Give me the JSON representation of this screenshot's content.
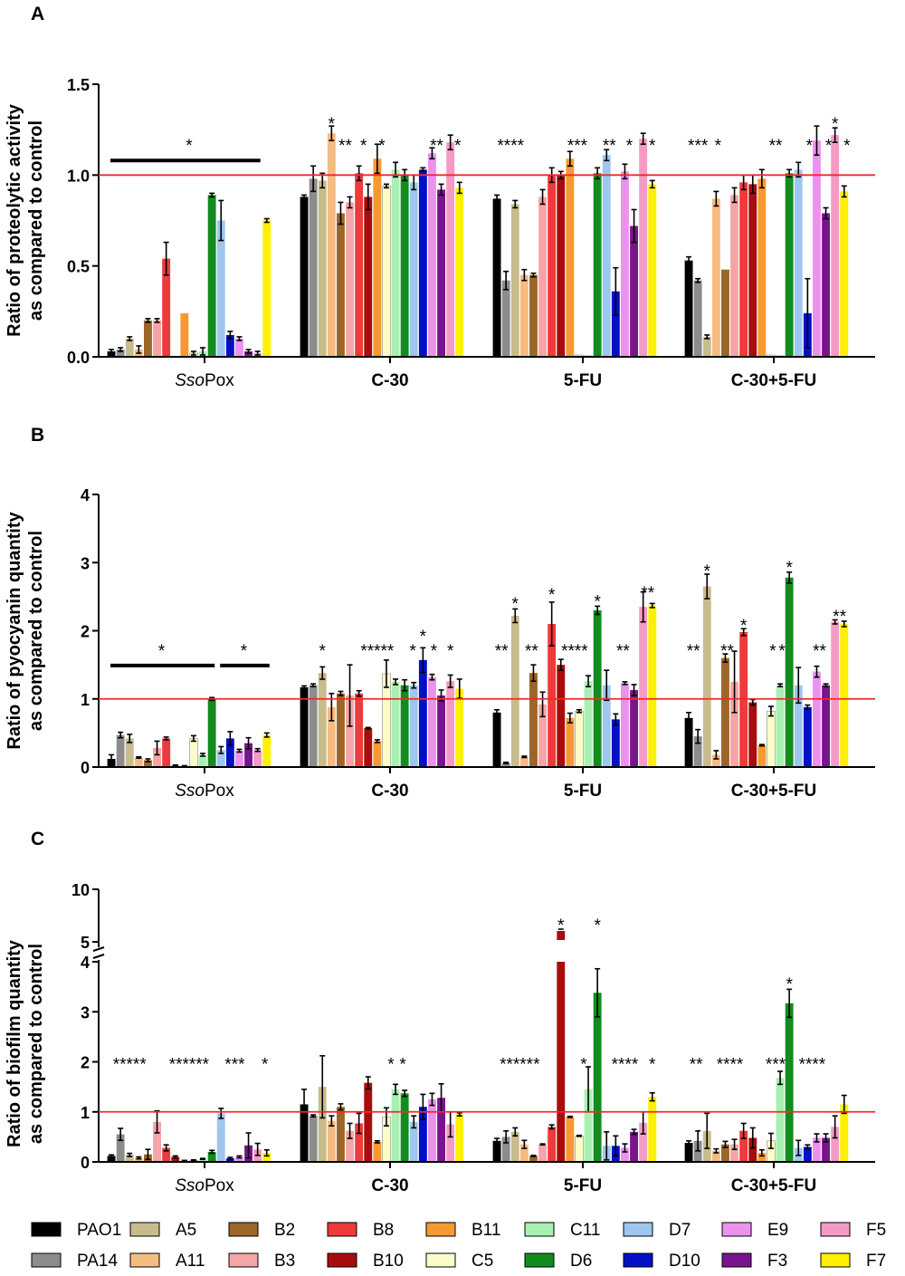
{
  "strains": [
    "PAO1",
    "PA14",
    "A5",
    "A11",
    "B2",
    "B3",
    "B8",
    "B10",
    "B11",
    "C5",
    "C11",
    "D6",
    "D7",
    "D10",
    "E9",
    "F3",
    "F5",
    "F7"
  ],
  "colors": {
    "PAO1": "#000000",
    "PA14": "#8c8c8c",
    "A5": "#c8bc8c",
    "A11": "#f5bc82",
    "B2": "#9c6628",
    "B3": "#f4a6a6",
    "B8": "#ee3a3a",
    "B10": "#a80d0d",
    "B11": "#f59a32",
    "C5": "#fcfcc8",
    "C11": "#a8f0b2",
    "D6": "#138c1e",
    "D7": "#9ec6ee",
    "D10": "#0010c8",
    "E9": "#ec92ec",
    "F3": "#7a148c",
    "F5": "#f49ac4",
    "F7": "#fff000"
  },
  "groups": [
    "SsoPox",
    "C-30",
    "5-FU",
    "C-30+5-FU"
  ],
  "group_label_parts": [
    {
      "italic": "Sso",
      "normal": "Pox"
    },
    {
      "italic": "",
      "normal": "C-30"
    },
    {
      "italic": "",
      "normal": "5-FU"
    },
    {
      "italic": "",
      "normal": "C-30+5-FU"
    }
  ],
  "chart_data": [
    {
      "type": "bar",
      "panel": "A",
      "ylabel": [
        "Ratio of proteolytic activity",
        "as compared to control"
      ],
      "ylim": [
        0,
        1.5
      ],
      "yticks": [
        "0.0",
        "0.5",
        "1.0",
        "1.5"
      ],
      "reference_line": 1.0,
      "series": [
        [
          0.03,
          0.04,
          0.1,
          0.04,
          0.2,
          0.2,
          0.54,
          0.0,
          0.24,
          0.02,
          0.03,
          0.89,
          0.75,
          0.12,
          0.1,
          0.03,
          0.02,
          0.75
        ],
        [
          0.88,
          0.98,
          0.97,
          1.23,
          0.79,
          0.85,
          1.01,
          0.88,
          1.09,
          0.94,
          1.03,
          1.0,
          0.96,
          1.03,
          1.12,
          0.92,
          1.18,
          0.93
        ],
        [
          0.87,
          0.42,
          0.84,
          0.45,
          0.45,
          0.88,
          1.0,
          1.0,
          1.09,
          0.01,
          0.01,
          1.01,
          1.11,
          0.36,
          1.02,
          0.72,
          1.2,
          0.95
        ],
        [
          0.53,
          0.42,
          0.11,
          0.87,
          0.48,
          0.89,
          0.96,
          0.95,
          0.98,
          0.01,
          0.01,
          1.01,
          1.03,
          0.24,
          1.19,
          0.79,
          1.22,
          0.91
        ]
      ],
      "errors": [
        [
          0.01,
          0.01,
          0.01,
          0.02,
          0.01,
          0.01,
          0.09,
          0.0,
          0.0,
          0.01,
          0.02,
          0.01,
          0.11,
          0.02,
          0.01,
          0.01,
          0.01,
          0.01
        ],
        [
          0.01,
          0.07,
          0.04,
          0.04,
          0.06,
          0.03,
          0.04,
          0.07,
          0.08,
          0.01,
          0.04,
          0.03,
          0.04,
          0.01,
          0.03,
          0.03,
          0.04,
          0.03
        ],
        [
          0.02,
          0.05,
          0.02,
          0.03,
          0.01,
          0.04,
          0.04,
          0.02,
          0.04,
          0.0,
          0.0,
          0.03,
          0.03,
          0.13,
          0.04,
          0.09,
          0.03,
          0.02
        ],
        [
          0.02,
          0.01,
          0.01,
          0.04,
          0.0,
          0.04,
          0.04,
          0.05,
          0.05,
          0.0,
          0.0,
          0.02,
          0.04,
          0.19,
          0.08,
          0.03,
          0.04,
          0.03
        ]
      ],
      "annotations": [
        {
          "group": 0,
          "bar": 8.5,
          "y": 1.17,
          "text": "*",
          "span": [
            0,
            16
          ]
        },
        {
          "group": 1,
          "bar": 3,
          "y": 1.29,
          "text": "*"
        },
        {
          "group": 1,
          "bar": 4.5,
          "y": 1.17,
          "text": "**"
        },
        {
          "group": 1,
          "bar": 6.5,
          "y": 1.17,
          "text": "*"
        },
        {
          "group": 1,
          "bar": 8.5,
          "y": 1.17,
          "text": "*"
        },
        {
          "group": 1,
          "bar": 14.5,
          "y": 1.17,
          "text": "**"
        },
        {
          "group": 1,
          "bar": 16.8,
          "y": 1.17,
          "text": "*"
        },
        {
          "group": 2,
          "bar": 1.5,
          "y": 1.17,
          "text": "****"
        },
        {
          "group": 2,
          "bar": 8.8,
          "y": 1.17,
          "text": "***"
        },
        {
          "group": 2,
          "bar": 12.3,
          "y": 1.17,
          "text": "**"
        },
        {
          "group": 2,
          "bar": 14.5,
          "y": 1.17,
          "text": "*"
        },
        {
          "group": 2,
          "bar": 17,
          "y": 1.17,
          "text": "*"
        },
        {
          "group": 3,
          "bar": 1,
          "y": 1.17,
          "text": "***"
        },
        {
          "group": 3,
          "bar": 3.2,
          "y": 1.17,
          "text": "*"
        },
        {
          "group": 3,
          "bar": 9.5,
          "y": 1.17,
          "text": "**"
        },
        {
          "group": 3,
          "bar": 13.2,
          "y": 1.17,
          "text": "*"
        },
        {
          "group": 3,
          "bar": 16,
          "y": 1.29,
          "text": "*"
        },
        {
          "group": 3,
          "bar": 15.3,
          "y": 1.17,
          "text": "*"
        },
        {
          "group": 3,
          "bar": 17.3,
          "y": 1.17,
          "text": "*"
        }
      ]
    },
    {
      "type": "bar",
      "panel": "B",
      "ylabel": [
        "Ratio of pyocyanin quantity",
        "as compared to control"
      ],
      "ylim": [
        0,
        4
      ],
      "yticks": [
        "0",
        "1",
        "2",
        "3",
        "4"
      ],
      "reference_line": 1.0,
      "series": [
        [
          0.12,
          0.47,
          0.42,
          0.14,
          0.1,
          0.28,
          0.42,
          0.02,
          0.01,
          0.42,
          0.18,
          1.0,
          0.25,
          0.42,
          0.24,
          0.35,
          0.25,
          0.47
        ],
        [
          1.17,
          1.2,
          1.38,
          0.88,
          1.08,
          1.05,
          1.08,
          0.57,
          0.38,
          1.37,
          1.25,
          1.2,
          1.2,
          1.57,
          1.32,
          1.05,
          1.26,
          1.15
        ],
        [
          0.8,
          0.06,
          2.22,
          0.15,
          1.38,
          0.92,
          2.1,
          1.5,
          0.72,
          0.82,
          1.26,
          2.3,
          1.2,
          0.7,
          1.23,
          1.13,
          2.35,
          2.37
        ],
        [
          0.72,
          0.45,
          2.65,
          0.18,
          1.6,
          1.25,
          1.98,
          0.95,
          0.32,
          0.82,
          1.2,
          2.78,
          1.2,
          0.88,
          1.4,
          1.2,
          2.13,
          2.1
        ]
      ],
      "errors": [
        [
          0.06,
          0.04,
          0.06,
          0.01,
          0.02,
          0.1,
          0.02,
          0.01,
          0.01,
          0.04,
          0.02,
          0.02,
          0.05,
          0.1,
          0.02,
          0.08,
          0.02,
          0.03
        ],
        [
          0.02,
          0.02,
          0.09,
          0.2,
          0.03,
          0.45,
          0.04,
          0.01,
          0.02,
          0.2,
          0.04,
          0.08,
          0.04,
          0.18,
          0.04,
          0.08,
          0.09,
          0.14
        ],
        [
          0.04,
          0.01,
          0.1,
          0.01,
          0.12,
          0.18,
          0.32,
          0.08,
          0.07,
          0.02,
          0.08,
          0.06,
          0.22,
          0.08,
          0.02,
          0.08,
          0.22,
          0.03
        ],
        [
          0.08,
          0.1,
          0.18,
          0.06,
          0.06,
          0.45,
          0.05,
          0.04,
          0.01,
          0.07,
          0.02,
          0.08,
          0.26,
          0.03,
          0.08,
          0.02,
          0.03,
          0.04
        ]
      ],
      "annotations": [
        {
          "group": 0,
          "bar": 5.5,
          "y": 1.73,
          "text": "*",
          "span": [
            0,
            11
          ]
        },
        {
          "group": 0,
          "bar": 14.5,
          "y": 1.73,
          "text": "*",
          "span": [
            12,
            17
          ]
        },
        {
          "group": 1,
          "bar": 2,
          "y": 1.73,
          "text": "*"
        },
        {
          "group": 1,
          "bar": 8,
          "y": 1.73,
          "text": "*****"
        },
        {
          "group": 1,
          "bar": 11.9,
          "y": 1.73,
          "text": "*"
        },
        {
          "group": 1,
          "bar": 13,
          "y": 1.94,
          "text": "*"
        },
        {
          "group": 1,
          "bar": 14.2,
          "y": 1.73,
          "text": "*"
        },
        {
          "group": 1,
          "bar": 16,
          "y": 1.73,
          "text": "*"
        },
        {
          "group": 2,
          "bar": 0.5,
          "y": 1.73,
          "text": "**"
        },
        {
          "group": 2,
          "bar": 2,
          "y": 2.42,
          "text": "*"
        },
        {
          "group": 2,
          "bar": 3.8,
          "y": 1.73,
          "text": "**"
        },
        {
          "group": 2,
          "bar": 6,
          "y": 2.55,
          "text": "*"
        },
        {
          "group": 2,
          "bar": 8.5,
          "y": 1.73,
          "text": "****"
        },
        {
          "group": 2,
          "bar": 11,
          "y": 2.45,
          "text": "*"
        },
        {
          "group": 2,
          "bar": 13.8,
          "y": 1.73,
          "text": "**"
        },
        {
          "group": 2,
          "bar": 16.5,
          "y": 2.58,
          "text": "**"
        },
        {
          "group": 3,
          "bar": 0.5,
          "y": 1.73,
          "text": "**"
        },
        {
          "group": 3,
          "bar": 2,
          "y": 2.9,
          "text": "*"
        },
        {
          "group": 3,
          "bar": 4.2,
          "y": 1.73,
          "text": "**"
        },
        {
          "group": 3,
          "bar": 6,
          "y": 2.1,
          "text": "*"
        },
        {
          "group": 3,
          "bar": 9.2,
          "y": 1.73,
          "text": "*"
        },
        {
          "group": 3,
          "bar": 10.2,
          "y": 1.73,
          "text": "*"
        },
        {
          "group": 3,
          "bar": 11,
          "y": 2.95,
          "text": "*"
        },
        {
          "group": 3,
          "bar": 14.3,
          "y": 1.73,
          "text": "**"
        },
        {
          "group": 3,
          "bar": 16.5,
          "y": 2.23,
          "text": "**"
        }
      ]
    },
    {
      "type": "bar",
      "panel": "C",
      "ylabel": [
        "Ratio of biofilm quantity",
        "as compared to control"
      ],
      "ylim": [
        0,
        4
      ],
      "broken_axis_upper": [
        5,
        10
      ],
      "yticks": [
        "0",
        "1",
        "2",
        "3",
        "4"
      ],
      "yticks_upper": [
        "5",
        "10"
      ],
      "reference_line": 1.0,
      "series": [
        [
          0.12,
          0.55,
          0.14,
          0.08,
          0.15,
          0.8,
          0.28,
          0.1,
          0.02,
          0.03,
          0.06,
          0.2,
          0.97,
          0.07,
          0.1,
          0.33,
          0.25,
          0.18
        ],
        [
          1.15,
          0.92,
          1.5,
          0.82,
          1.1,
          0.62,
          0.77,
          1.58,
          0.4,
          0.9,
          1.45,
          1.37,
          0.8,
          1.1,
          1.25,
          1.28,
          0.75,
          0.95
        ],
        [
          0.42,
          0.5,
          0.6,
          0.35,
          0.12,
          0.35,
          0.7,
          5.8,
          0.9,
          0.52,
          1.45,
          3.38,
          0.32,
          0.32,
          0.28,
          0.6,
          0.78,
          1.3
        ],
        [
          0.38,
          0.42,
          0.62,
          0.22,
          0.35,
          0.35,
          0.62,
          0.48,
          0.18,
          0.42,
          1.68,
          3.17,
          0.28,
          0.3,
          0.48,
          0.48,
          0.7,
          1.15
        ]
      ],
      "errors": [
        [
          0.02,
          0.12,
          0.03,
          0.02,
          0.1,
          0.22,
          0.06,
          0.02,
          0.01,
          0.01,
          0.01,
          0.03,
          0.1,
          0.02,
          0.02,
          0.25,
          0.12,
          0.06
        ],
        [
          0.3,
          0.02,
          0.62,
          0.1,
          0.06,
          0.15,
          0.2,
          0.12,
          0.02,
          0.18,
          0.1,
          0.06,
          0.12,
          0.25,
          0.12,
          0.28,
          0.25,
          0.03
        ],
        [
          0.05,
          0.12,
          0.08,
          0.08,
          0.01,
          0.01,
          0.04,
          0.4,
          0.01,
          0.01,
          0.45,
          0.48,
          0.28,
          0.2,
          0.08,
          0.05,
          0.22,
          0.08
        ],
        [
          0.04,
          0.2,
          0.35,
          0.04,
          0.06,
          0.1,
          0.15,
          0.2,
          0.06,
          0.15,
          0.13,
          0.28,
          0.15,
          0.04,
          0.08,
          0.08,
          0.22,
          0.18
        ]
      ],
      "annotations": [
        {
          "group": 0,
          "bar": 2,
          "y": 1.98,
          "text": "*****"
        },
        {
          "group": 0,
          "bar": 8.5,
          "y": 1.98,
          "text": "******"
        },
        {
          "group": 0,
          "bar": 13.5,
          "y": 1.98,
          "text": "***"
        },
        {
          "group": 0,
          "bar": 16.8,
          "y": 1.98,
          "text": "*"
        },
        {
          "group": 1,
          "bar": 9.5,
          "y": 1.98,
          "text": "*"
        },
        {
          "group": 1,
          "bar": 10.8,
          "y": 1.98,
          "text": "*"
        },
        {
          "group": 2,
          "bar": 2.5,
          "y": 1.98,
          "text": "******"
        },
        {
          "group": 2,
          "bar": 7,
          "y": 4.55,
          "text": "*"
        },
        {
          "group": 2,
          "bar": 9.5,
          "y": 1.98,
          "text": "*"
        },
        {
          "group": 2,
          "bar": 11,
          "y": 4.03,
          "text": "*"
        },
        {
          "group": 2,
          "bar": 14,
          "y": 1.98,
          "text": "****"
        },
        {
          "group": 2,
          "bar": 17,
          "y": 1.98,
          "text": "*"
        },
        {
          "group": 3,
          "bar": 0.8,
          "y": 1.98,
          "text": "**"
        },
        {
          "group": 3,
          "bar": 4.5,
          "y": 1.98,
          "text": "****"
        },
        {
          "group": 3,
          "bar": 9.5,
          "y": 1.98,
          "text": "***"
        },
        {
          "group": 3,
          "bar": 11,
          "y": 3.58,
          "text": "*"
        },
        {
          "group": 3,
          "bar": 13.5,
          "y": 1.98,
          "text": "****"
        }
      ]
    }
  ]
}
